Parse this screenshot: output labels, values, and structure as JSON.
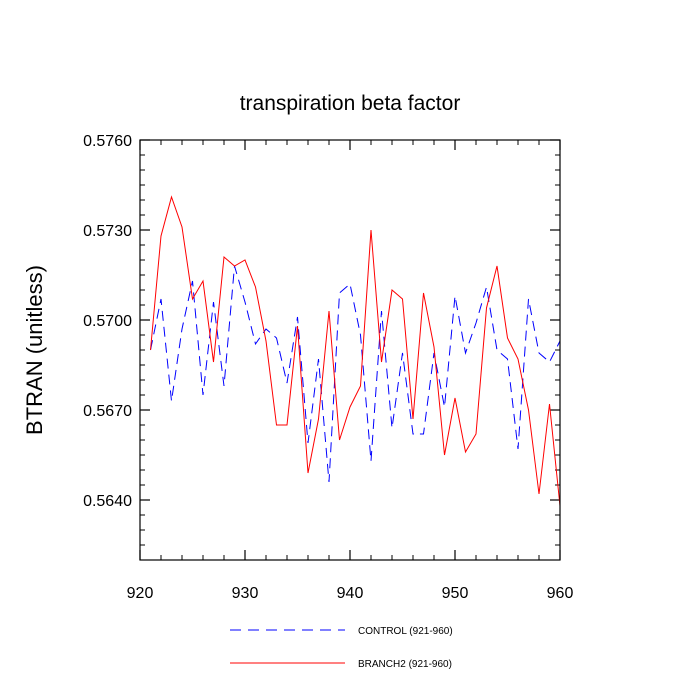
{
  "chart_data": {
    "type": "line",
    "title": "transpiration beta factor",
    "xlabel": "",
    "ylabel": "BTRAN  (unitless)",
    "xlim": [
      920,
      960
    ],
    "ylim": [
      0.562,
      0.576
    ],
    "x_ticks": [
      920,
      930,
      940,
      950,
      960
    ],
    "x_tick_labels": [
      "920",
      "930",
      "940",
      "950",
      "960"
    ],
    "y_ticks": [
      0.564,
      0.567,
      0.57,
      0.573,
      0.576
    ],
    "y_tick_labels": [
      "0.5640",
      "0.5670",
      "0.5700",
      "0.5730",
      "0.5760"
    ],
    "grid": false,
    "legend_position": "bottom",
    "x": [
      921,
      922,
      923,
      924,
      925,
      926,
      927,
      928,
      929,
      930,
      931,
      932,
      933,
      934,
      935,
      936,
      937,
      938,
      939,
      940,
      941,
      942,
      943,
      944,
      945,
      946,
      947,
      948,
      949,
      950,
      951,
      952,
      953,
      954,
      955,
      956,
      957,
      958,
      959,
      960
    ],
    "series": [
      {
        "name": "CONTROL (921-960)",
        "color": "#0000ff",
        "dash": true,
        "values": [
          0.569,
          0.5707,
          0.5673,
          0.5697,
          0.5713,
          0.5675,
          0.5706,
          0.5678,
          0.5718,
          0.5706,
          0.5692,
          0.5697,
          0.5694,
          0.5679,
          0.5701,
          0.5659,
          0.5687,
          0.5646,
          0.5709,
          0.5712,
          0.5695,
          0.5653,
          0.5703,
          0.5664,
          0.5689,
          0.5662,
          0.5662,
          0.5689,
          0.5671,
          0.5708,
          0.5689,
          0.5699,
          0.5711,
          0.569,
          0.5687,
          0.5657,
          0.5707,
          0.5689,
          0.5686,
          0.5693
        ]
      },
      {
        "name": "BRANCH2 (921-960)",
        "color": "#ff0000",
        "dash": false,
        "values": [
          0.569,
          0.5728,
          0.5741,
          0.5731,
          0.5707,
          0.5713,
          0.5686,
          0.5721,
          0.5718,
          0.572,
          0.5711,
          0.5693,
          0.5665,
          0.5665,
          0.5698,
          0.5649,
          0.5667,
          0.5703,
          0.566,
          0.5671,
          0.5678,
          0.573,
          0.5686,
          0.571,
          0.5707,
          0.5667,
          0.5709,
          0.5691,
          0.5655,
          0.5674,
          0.5656,
          0.5662,
          0.5704,
          0.5718,
          0.5694,
          0.5687,
          0.567,
          0.5642,
          0.5672,
          0.5638
        ]
      }
    ]
  }
}
